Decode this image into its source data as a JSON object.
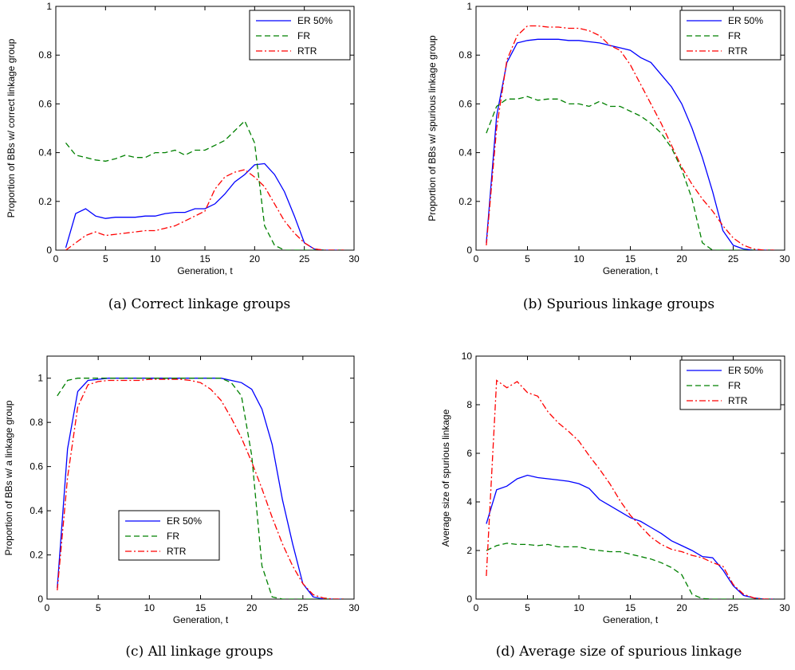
{
  "chart_data": [
    {
      "type": "line",
      "caption": "(a) Correct linkage groups",
      "xlabel": "Generation, t",
      "ylabel": "Proportion of BBs w/ correct linkage group",
      "xlim": [
        0,
        30
      ],
      "ylim": [
        0,
        1
      ],
      "xticks": [
        0,
        5,
        10,
        15,
        20,
        25,
        30
      ],
      "yticks": [
        0,
        0.2,
        0.4,
        0.6,
        0.8,
        1
      ],
      "ytick_labels": [
        "0",
        "0.2",
        "0.4",
        "0.6",
        "0.8",
        "1"
      ],
      "legend": "top-right",
      "x": [
        1,
        2,
        3,
        4,
        5,
        6,
        7,
        8,
        9,
        10,
        11,
        12,
        13,
        14,
        15,
        16,
        17,
        18,
        19,
        20,
        21,
        22,
        23,
        24,
        25,
        26,
        27,
        28,
        29
      ],
      "series": [
        {
          "name": "ER 50%",
          "color": "#0000ff",
          "dash": "solid",
          "values": [
            0.01,
            0.15,
            0.17,
            0.14,
            0.13,
            0.135,
            0.135,
            0.135,
            0.14,
            0.14,
            0.15,
            0.155,
            0.155,
            0.17,
            0.17,
            0.19,
            0.23,
            0.28,
            0.31,
            0.35,
            0.355,
            0.31,
            0.24,
            0.14,
            0.03,
            0.005,
            0,
            0,
            0
          ]
        },
        {
          "name": "FR",
          "color": "#008000",
          "dash": "dashed",
          "values": [
            0.44,
            0.39,
            0.38,
            0.37,
            0.365,
            0.375,
            0.39,
            0.38,
            0.38,
            0.4,
            0.4,
            0.41,
            0.39,
            0.41,
            0.41,
            0.43,
            0.45,
            0.49,
            0.53,
            0.44,
            0.1,
            0.02,
            0,
            0,
            0,
            0,
            0,
            0,
            0
          ]
        },
        {
          "name": "RTR",
          "color": "#ff0000",
          "dash": "dashdot",
          "values": [
            0,
            0.03,
            0.06,
            0.075,
            0.06,
            0.065,
            0.07,
            0.075,
            0.08,
            0.08,
            0.09,
            0.1,
            0.12,
            0.14,
            0.16,
            0.25,
            0.3,
            0.32,
            0.33,
            0.3,
            0.26,
            0.19,
            0.12,
            0.07,
            0.03,
            0.005,
            0,
            0,
            0
          ]
        }
      ]
    },
    {
      "type": "line",
      "caption": "(b) Spurious linkage groups",
      "xlabel": "Generation, t",
      "ylabel": "Proportion of BBs w/ spurious linkage group",
      "xlim": [
        0,
        30
      ],
      "ylim": [
        0,
        1
      ],
      "xticks": [
        0,
        5,
        10,
        15,
        20,
        25,
        30
      ],
      "yticks": [
        0,
        0.2,
        0.4,
        0.6,
        0.8,
        1
      ],
      "ytick_labels": [
        "0",
        "0.2",
        "0.4",
        "0.6",
        "0.8",
        "1"
      ],
      "legend": "top-right",
      "x": [
        1,
        2,
        3,
        4,
        5,
        6,
        7,
        8,
        9,
        10,
        11,
        12,
        13,
        14,
        15,
        16,
        17,
        18,
        19,
        20,
        21,
        22,
        23,
        24,
        25,
        26,
        27,
        28,
        29
      ],
      "series": [
        {
          "name": "ER 50%",
          "color": "#0000ff",
          "dash": "solid",
          "values": [
            0.03,
            0.55,
            0.77,
            0.85,
            0.86,
            0.865,
            0.865,
            0.865,
            0.86,
            0.86,
            0.855,
            0.85,
            0.84,
            0.83,
            0.82,
            0.79,
            0.77,
            0.72,
            0.67,
            0.6,
            0.5,
            0.38,
            0.24,
            0.08,
            0.02,
            0.005,
            0,
            0,
            0
          ]
        },
        {
          "name": "FR",
          "color": "#008000",
          "dash": "dashed",
          "values": [
            0.48,
            0.59,
            0.62,
            0.62,
            0.63,
            0.615,
            0.62,
            0.62,
            0.6,
            0.6,
            0.59,
            0.61,
            0.59,
            0.59,
            0.57,
            0.55,
            0.52,
            0.48,
            0.42,
            0.33,
            0.21,
            0.03,
            0,
            0,
            0,
            0,
            0,
            0,
            0
          ]
        },
        {
          "name": "RTR",
          "color": "#ff0000",
          "dash": "dashdot",
          "values": [
            0.02,
            0.5,
            0.78,
            0.88,
            0.92,
            0.92,
            0.915,
            0.915,
            0.91,
            0.91,
            0.9,
            0.88,
            0.84,
            0.82,
            0.76,
            0.68,
            0.6,
            0.52,
            0.43,
            0.34,
            0.27,
            0.21,
            0.16,
            0.1,
            0.05,
            0.02,
            0.005,
            0,
            0
          ]
        }
      ]
    },
    {
      "type": "line",
      "caption": "(c) All linkage groups",
      "xlabel": "Generation, t",
      "ylabel": "Proportion of BBs w/ a linkage group",
      "xlim": [
        0,
        30
      ],
      "ylim": [
        0,
        1.1
      ],
      "xticks": [
        0,
        5,
        10,
        15,
        20,
        25,
        30
      ],
      "yticks": [
        0,
        0.2,
        0.4,
        0.6,
        0.8,
        1
      ],
      "ytick_labels": [
        "0",
        "0.2",
        "0.4",
        "0.6",
        "0.8",
        "1"
      ],
      "legend": "lower-center",
      "x": [
        1,
        2,
        3,
        4,
        5,
        6,
        7,
        8,
        9,
        10,
        11,
        12,
        13,
        14,
        15,
        16,
        17,
        18,
        19,
        20,
        21,
        22,
        23,
        24,
        25,
        26,
        27,
        28,
        29
      ],
      "series": [
        {
          "name": "ER 50%",
          "color": "#0000ff",
          "dash": "solid",
          "values": [
            0.05,
            0.68,
            0.94,
            0.99,
            0.995,
            1,
            1,
            1,
            1,
            1,
            1,
            1,
            1,
            1,
            1,
            1,
            1,
            0.99,
            0.98,
            0.95,
            0.86,
            0.7,
            0.45,
            0.25,
            0.07,
            0.01,
            0,
            0,
            0
          ]
        },
        {
          "name": "FR",
          "color": "#008000",
          "dash": "dashed",
          "values": [
            0.92,
            0.99,
            1,
            1,
            1,
            1,
            1,
            1,
            1,
            1,
            1,
            1,
            1,
            1,
            1,
            1,
            1,
            0.98,
            0.92,
            0.65,
            0.15,
            0.01,
            0,
            0,
            0,
            0,
            0,
            0,
            0
          ]
        },
        {
          "name": "RTR",
          "color": "#ff0000",
          "dash": "dashdot",
          "values": [
            0.04,
            0.55,
            0.87,
            0.97,
            0.985,
            0.99,
            0.99,
            0.99,
            0.99,
            0.995,
            0.995,
            0.995,
            0.995,
            0.99,
            0.98,
            0.95,
            0.9,
            0.82,
            0.73,
            0.62,
            0.5,
            0.37,
            0.25,
            0.15,
            0.07,
            0.02,
            0.005,
            0,
            0
          ]
        }
      ]
    },
    {
      "type": "line",
      "caption": "(d) Average size of spurious linkage",
      "xlabel": "Generation, t",
      "ylabel": "Average size of spurious linkage",
      "xlim": [
        0,
        30
      ],
      "ylim": [
        0,
        10
      ],
      "xticks": [
        0,
        5,
        10,
        15,
        20,
        25,
        30
      ],
      "yticks": [
        0,
        2,
        4,
        6,
        8,
        10
      ],
      "ytick_labels": [
        "0",
        "2",
        "4",
        "6",
        "8",
        "10"
      ],
      "legend": "top-right",
      "x": [
        1,
        2,
        3,
        4,
        5,
        6,
        7,
        8,
        9,
        10,
        11,
        12,
        13,
        14,
        15,
        16,
        17,
        18,
        19,
        20,
        21,
        22,
        23,
        24,
        25,
        26,
        27,
        28,
        29
      ],
      "series": [
        {
          "name": "ER 50%",
          "color": "#0000ff",
          "dash": "solid",
          "values": [
            3.1,
            4.5,
            4.65,
            4.95,
            5.1,
            5.0,
            4.95,
            4.9,
            4.85,
            4.75,
            4.55,
            4.1,
            3.85,
            3.6,
            3.35,
            3.2,
            2.95,
            2.7,
            2.4,
            2.2,
            2.0,
            1.75,
            1.7,
            1.2,
            0.55,
            0.15,
            0.05,
            0,
            0
          ]
        },
        {
          "name": "FR",
          "color": "#008000",
          "dash": "dashed",
          "values": [
            2.0,
            2.2,
            2.3,
            2.25,
            2.25,
            2.2,
            2.25,
            2.15,
            2.15,
            2.15,
            2.05,
            2.0,
            1.95,
            1.95,
            1.85,
            1.75,
            1.65,
            1.5,
            1.3,
            1.0,
            0.2,
            0.02,
            0,
            0,
            0,
            0,
            0,
            0,
            0
          ]
        },
        {
          "name": "RTR",
          "color": "#ff0000",
          "dash": "dashdot",
          "values": [
            0.95,
            9.0,
            8.7,
            8.95,
            8.5,
            8.35,
            7.7,
            7.25,
            6.9,
            6.5,
            5.9,
            5.35,
            4.75,
            4.05,
            3.45,
            3.0,
            2.55,
            2.25,
            2.05,
            1.95,
            1.8,
            1.7,
            1.5,
            1.35,
            0.6,
            0.2,
            0.05,
            0,
            0
          ]
        }
      ]
    }
  ]
}
